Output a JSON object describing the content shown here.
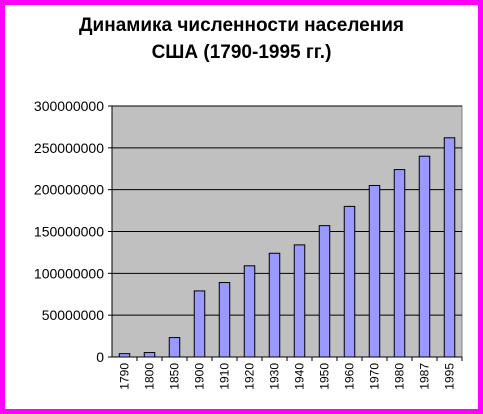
{
  "chart_data": {
    "type": "bar",
    "title_line1": "Динамика численности населения",
    "title_line2": "США (1790-1995 гг.)",
    "categories": [
      "1790",
      "1800",
      "1850",
      "1900",
      "1910",
      "1920",
      "1930",
      "1940",
      "1950",
      "1960",
      "1970",
      "1980",
      "1987",
      "1995"
    ],
    "values": [
      4000000,
      5300000,
      23200000,
      79000000,
      89000000,
      109000000,
      124000000,
      134000000,
      157000000,
      180000000,
      205000000,
      224000000,
      240000000,
      262000000
    ],
    "ylim": [
      0,
      300000000
    ],
    "yticks": [
      "0",
      "50000000",
      "100000000",
      "150000000",
      "200000000",
      "250000000",
      "300000000"
    ],
    "grid": true,
    "legend": "none",
    "colors": {
      "bar": "#9999ff",
      "plot_bg": "#c0c0c0",
      "border": "#ff00ff"
    }
  }
}
